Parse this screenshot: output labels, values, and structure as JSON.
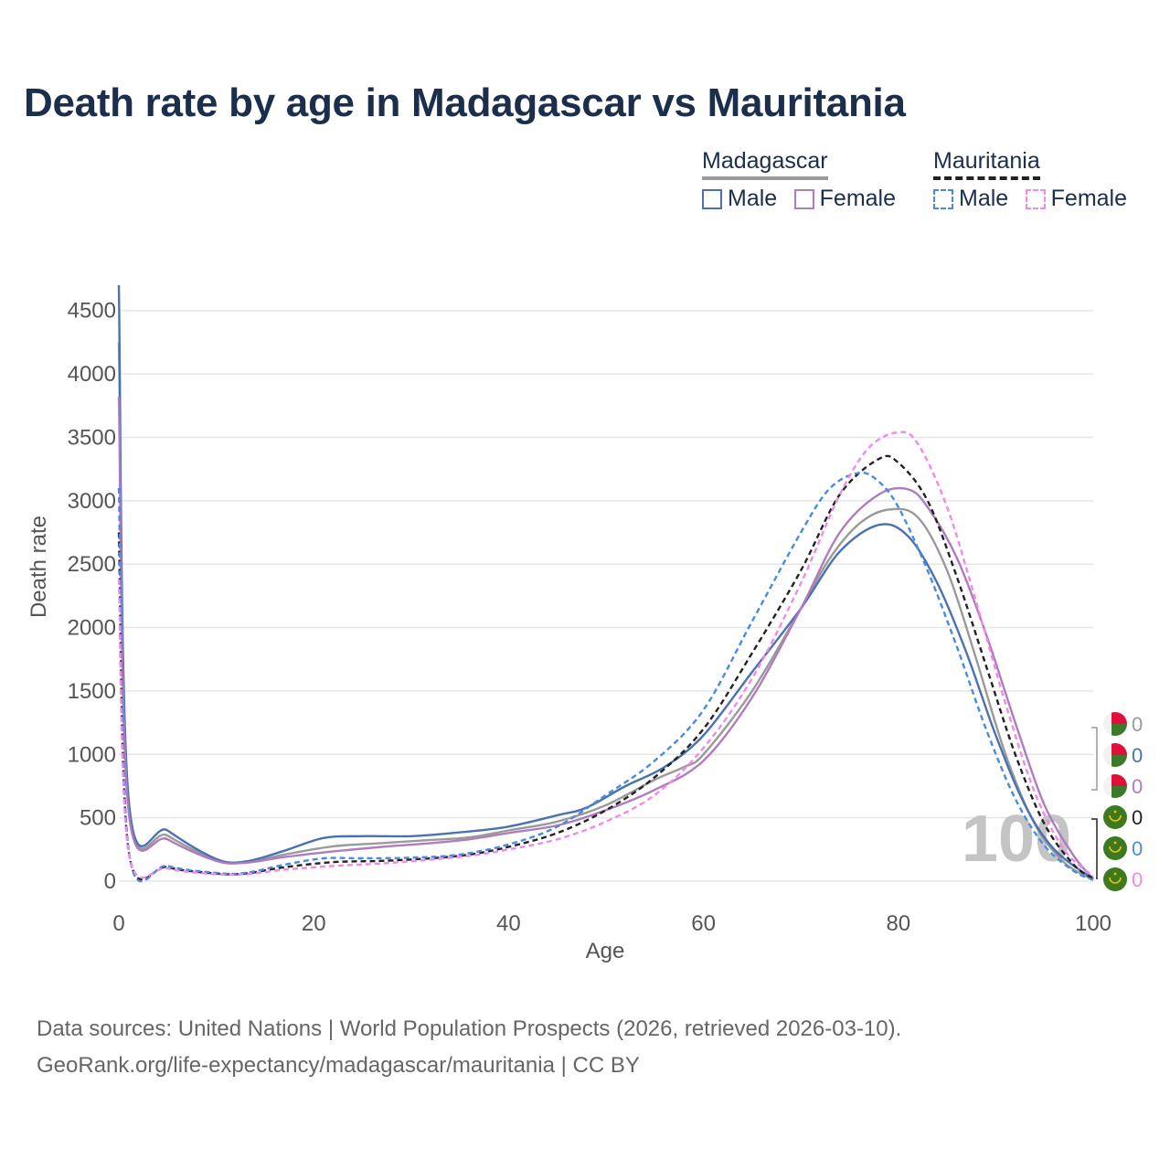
{
  "title": "Death rate by age in Madagascar vs Mauritania",
  "legend": {
    "groups": [
      {
        "name": "Madagascar",
        "line_style": "solid",
        "line_color": "#9a9a9a",
        "items": [
          {
            "label": "Male",
            "color": "#4a72b0",
            "style": "solid"
          },
          {
            "label": "Female",
            "color": "#b07cc0",
            "style": "solid"
          }
        ]
      },
      {
        "name": "Mauritania",
        "line_style": "dashed",
        "line_color": "#222222",
        "items": [
          {
            "label": "Male",
            "color": "#4a8be0",
            "style": "dashed"
          },
          {
            "label": "Female",
            "color": "#f08ae8",
            "style": "dashed"
          }
        ]
      }
    ]
  },
  "chart_data": {
    "type": "line",
    "title": "Death rate by age in Madagascar vs Mauritania",
    "xlabel": "Age",
    "ylabel": "Death rate",
    "xlim": [
      0,
      100
    ],
    "ylim": [
      0,
      4700
    ],
    "x_ticks": [
      0,
      20,
      40,
      60,
      80,
      100
    ],
    "y_ticks": [
      0,
      500,
      1000,
      1500,
      2000,
      2500,
      3000,
      3500,
      4000,
      4500
    ],
    "grid": true,
    "watermark": "100",
    "series": [
      {
        "name": "Madagascar Total",
        "color": "#9a9a9a",
        "dash": false,
        "points": [
          [
            0,
            4250
          ],
          [
            1,
            600
          ],
          [
            5,
            360
          ],
          [
            10,
            170
          ],
          [
            13,
            150
          ],
          [
            17,
            210
          ],
          [
            22,
            275
          ],
          [
            27,
            300
          ],
          [
            32,
            325
          ],
          [
            36,
            345
          ],
          [
            40,
            400
          ],
          [
            45,
            470
          ],
          [
            50,
            600
          ],
          [
            55,
            800
          ],
          [
            58,
            900
          ],
          [
            60,
            1000
          ],
          [
            65,
            1500
          ],
          [
            70,
            2150
          ],
          [
            73,
            2550
          ],
          [
            76,
            2820
          ],
          [
            79,
            2930
          ],
          [
            82,
            2870
          ],
          [
            85,
            2450
          ],
          [
            88,
            1750
          ],
          [
            91,
            1000
          ],
          [
            94,
            450
          ],
          [
            97,
            150
          ],
          [
            100,
            10
          ]
        ]
      },
      {
        "name": "Madagascar Male",
        "color": "#4a72b0",
        "dash": false,
        "points": [
          [
            0,
            4700
          ],
          [
            1,
            650
          ],
          [
            5,
            400
          ],
          [
            10,
            175
          ],
          [
            13,
            155
          ],
          [
            17,
            240
          ],
          [
            21,
            340
          ],
          [
            25,
            355
          ],
          [
            30,
            355
          ],
          [
            35,
            385
          ],
          [
            40,
            430
          ],
          [
            45,
            520
          ],
          [
            48,
            580
          ],
          [
            52,
            750
          ],
          [
            56,
            900
          ],
          [
            60,
            1150
          ],
          [
            65,
            1650
          ],
          [
            70,
            2150
          ],
          [
            74,
            2600
          ],
          [
            78,
            2810
          ],
          [
            81,
            2720
          ],
          [
            84,
            2350
          ],
          [
            87,
            1800
          ],
          [
            90,
            1150
          ],
          [
            93,
            600
          ],
          [
            96,
            250
          ],
          [
            100,
            15
          ]
        ]
      },
      {
        "name": "Madagascar Female",
        "color": "#b07cc0",
        "dash": false,
        "points": [
          [
            0,
            3820
          ],
          [
            1,
            550
          ],
          [
            5,
            330
          ],
          [
            10,
            160
          ],
          [
            13,
            145
          ],
          [
            17,
            190
          ],
          [
            22,
            235
          ],
          [
            27,
            270
          ],
          [
            32,
            300
          ],
          [
            36,
            330
          ],
          [
            40,
            380
          ],
          [
            45,
            440
          ],
          [
            50,
            560
          ],
          [
            55,
            720
          ],
          [
            60,
            950
          ],
          [
            65,
            1450
          ],
          [
            70,
            2150
          ],
          [
            74,
            2750
          ],
          [
            78,
            3050
          ],
          [
            81,
            3090
          ],
          [
            83,
            2950
          ],
          [
            86,
            2550
          ],
          [
            89,
            1950
          ],
          [
            92,
            1250
          ],
          [
            95,
            600
          ],
          [
            98,
            200
          ],
          [
            100,
            20
          ]
        ]
      },
      {
        "name": "Mauritania Total",
        "color": "#222222",
        "dash": true,
        "points": [
          [
            0,
            2750
          ],
          [
            1,
            240
          ],
          [
            5,
            110
          ],
          [
            10,
            60
          ],
          [
            13,
            60
          ],
          [
            17,
            110
          ],
          [
            22,
            150
          ],
          [
            27,
            160
          ],
          [
            32,
            180
          ],
          [
            36,
            210
          ],
          [
            40,
            270
          ],
          [
            45,
            380
          ],
          [
            50,
            560
          ],
          [
            55,
            820
          ],
          [
            60,
            1200
          ],
          [
            65,
            1800
          ],
          [
            70,
            2450
          ],
          [
            74,
            3050
          ],
          [
            78,
            3330
          ],
          [
            80,
            3300
          ],
          [
            83,
            3000
          ],
          [
            86,
            2400
          ],
          [
            89,
            1700
          ],
          [
            92,
            1000
          ],
          [
            95,
            450
          ],
          [
            98,
            130
          ],
          [
            100,
            20
          ]
        ]
      },
      {
        "name": "Mauritania Male",
        "color": "#4a8be0",
        "dash": true,
        "points": [
          [
            0,
            3100
          ],
          [
            1,
            250
          ],
          [
            5,
            120
          ],
          [
            10,
            65
          ],
          [
            13,
            65
          ],
          [
            17,
            130
          ],
          [
            21,
            180
          ],
          [
            25,
            180
          ],
          [
            30,
            185
          ],
          [
            35,
            210
          ],
          [
            40,
            290
          ],
          [
            45,
            430
          ],
          [
            50,
            680
          ],
          [
            55,
            950
          ],
          [
            60,
            1350
          ],
          [
            65,
            2050
          ],
          [
            70,
            2750
          ],
          [
            73,
            3100
          ],
          [
            76,
            3220
          ],
          [
            78,
            3150
          ],
          [
            80,
            2950
          ],
          [
            83,
            2450
          ],
          [
            86,
            1850
          ],
          [
            89,
            1200
          ],
          [
            92,
            650
          ],
          [
            95,
            280
          ],
          [
            98,
            80
          ],
          [
            100,
            10
          ]
        ]
      },
      {
        "name": "Mauritania Female",
        "color": "#f08ae8",
        "dash": true,
        "points": [
          [
            0,
            2380
          ],
          [
            1,
            230
          ],
          [
            5,
            100
          ],
          [
            10,
            55
          ],
          [
            13,
            55
          ],
          [
            17,
            90
          ],
          [
            22,
            120
          ],
          [
            27,
            140
          ],
          [
            32,
            170
          ],
          [
            36,
            200
          ],
          [
            40,
            250
          ],
          [
            45,
            330
          ],
          [
            50,
            470
          ],
          [
            55,
            680
          ],
          [
            60,
            1050
          ],
          [
            65,
            1600
          ],
          [
            70,
            2350
          ],
          [
            74,
            3050
          ],
          [
            77,
            3420
          ],
          [
            80,
            3540
          ],
          [
            82,
            3450
          ],
          [
            85,
            2950
          ],
          [
            88,
            2200
          ],
          [
            91,
            1400
          ],
          [
            94,
            700
          ],
          [
            97,
            250
          ],
          [
            100,
            40
          ]
        ]
      }
    ],
    "end_labels": [
      {
        "value": "0",
        "color": "#9a9a9a",
        "flag": "madagascar"
      },
      {
        "value": "0",
        "color": "#4a72b0",
        "flag": "madagascar"
      },
      {
        "value": "0",
        "color": "#b07cc0",
        "flag": "madagascar"
      },
      {
        "value": "0",
        "color": "#222222",
        "flag": "mauritania"
      },
      {
        "value": "0",
        "color": "#4a8be0",
        "flag": "mauritania"
      },
      {
        "value": "0",
        "color": "#f08ae8",
        "flag": "mauritania"
      }
    ]
  },
  "footer": {
    "line1": "Data sources: United Nations | World Population Prospects (2026, retrieved 2026-03-10).",
    "line2": "GeoRank.org/life-expectancy/madagascar/mauritania | CC BY"
  }
}
